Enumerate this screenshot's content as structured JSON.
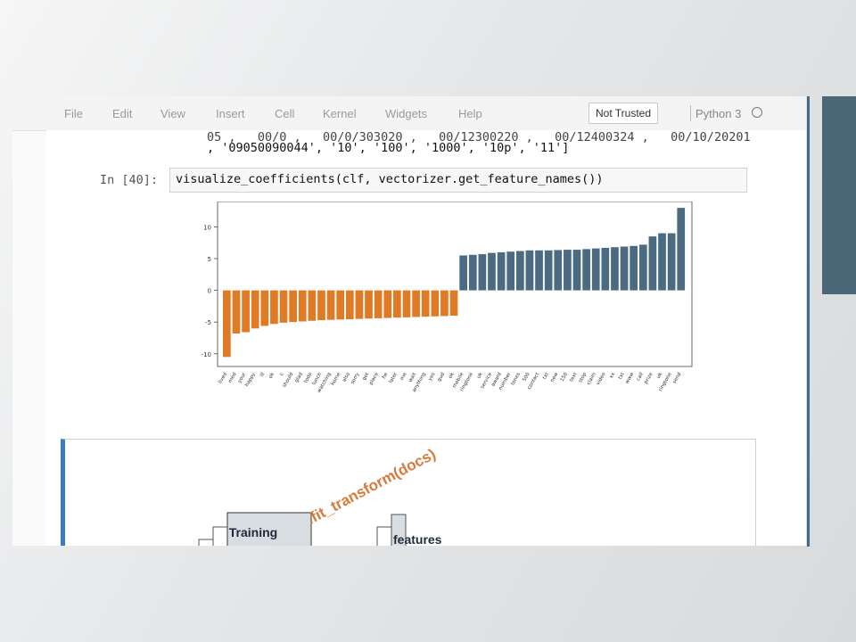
{
  "menu": {
    "items": [
      "File",
      "Edit",
      "View",
      "Insert",
      "Cell",
      "Kernel",
      "Widgets",
      "Help"
    ],
    "trust_button": "Not Trusted",
    "kernel_name": "Python 3"
  },
  "output": {
    "line1": "05 ,   00/0 ,   00/0/303020 ,   00/12300220 ,   00/12400324 ,   00/10/20201",
    "line2": ", '09050090044', '10', '100', '1000', '10p', '11']"
  },
  "cell": {
    "prompt": "In [40]:",
    "code": "visualize_coefficients(clf, vectorizer.get_feature_names())"
  },
  "chart_data": {
    "type": "bar",
    "ylim": [
      -12,
      14
    ],
    "yticks": [
      -10,
      -5,
      0,
      5,
      10
    ],
    "negative_color": "#e07b25",
    "positive_color": "#4a6b82",
    "categories": [
      "lived",
      "med",
      "your",
      "happy",
      "ill",
      "ok",
      "c",
      "should",
      "glad",
      "todo",
      "lunch",
      "watching",
      "home",
      "also",
      "sorry",
      "got",
      "place",
      "he",
      "later",
      "me",
      "wait",
      "anything",
      "yes",
      "gud",
      "ok",
      "mobile",
      "ringtone",
      "uk",
      "service",
      "award",
      "number",
      "tones",
      "500",
      "contact",
      "txt",
      "new",
      "150",
      "text",
      "stop",
      "claim",
      "video",
      "xx",
      "txt",
      "www",
      "call",
      "prize",
      "uk",
      "ringtone",
      "send"
    ],
    "values": [
      -10.5,
      -6.8,
      -6.6,
      -6.0,
      -5.6,
      -5.3,
      -5.1,
      -5.0,
      -4.9,
      -4.8,
      -4.7,
      -4.65,
      -4.6,
      -4.55,
      -4.5,
      -4.45,
      -4.4,
      -4.35,
      -4.3,
      -4.25,
      -4.2,
      -4.15,
      -4.1,
      -4.05,
      -4.0,
      5.5,
      5.6,
      5.7,
      5.9,
      6.0,
      6.1,
      6.2,
      6.3,
      6.3,
      6.3,
      6.35,
      6.4,
      6.4,
      6.5,
      6.6,
      6.7,
      6.8,
      6.9,
      7.0,
      7.2,
      8.5,
      9.0,
      9.0,
      13.0
    ]
  },
  "diagram": {
    "training_label": "Training",
    "fit_label": ".fit_transform(docs)",
    "features_label": "features"
  },
  "colors": {
    "accent": "#3a7cc2",
    "side_panel": "#4b6676"
  }
}
